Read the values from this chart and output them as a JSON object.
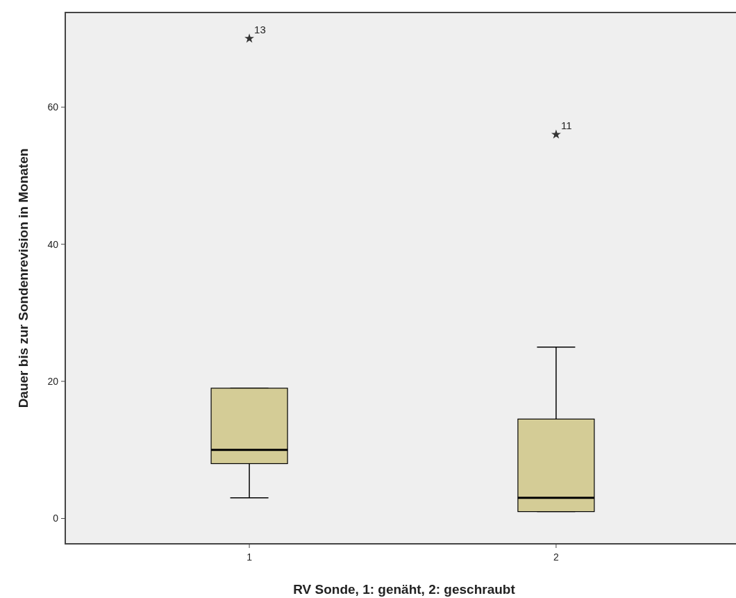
{
  "chart_data": {
    "type": "box",
    "xlabel": "RV Sonde, 1: genäht, 2: geschraubt",
    "ylabel": "Dauer bis zur Sondenrevision in Monaten",
    "categories": [
      "1",
      "2"
    ],
    "series": [
      {
        "color": "#d4cc96",
        "boxes": [
          {
            "low": 3,
            "q1": 8,
            "median": 10,
            "q3": 19,
            "high": 19,
            "outliers": [
              70
            ]
          },
          {
            "low": 1,
            "q1": 1,
            "median": 3,
            "q3": 14.5,
            "high": 25,
            "outliers": [
              56
            ]
          }
        ]
      }
    ],
    "marker": "star",
    "ylim": [
      -3.7,
      73.8
    ],
    "yticks": [
      0,
      20,
      40,
      60
    ],
    "grid": false,
    "annotations": [
      "13",
      "11"
    ]
  }
}
